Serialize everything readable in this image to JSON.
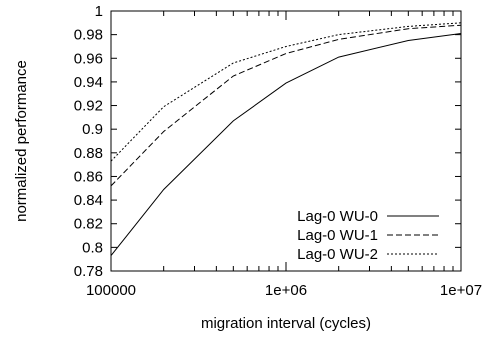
{
  "chart_data": {
    "type": "line",
    "xlabel": "migration interval (cycles)",
    "ylabel": "normalized performance",
    "xscale": "log",
    "xlim": [
      100000,
      10000000
    ],
    "ylim": [
      0.78,
      1.0
    ],
    "x_ticks": [
      {
        "value": 100000,
        "label": "100000"
      },
      {
        "value": 1000000,
        "label": "1e+06"
      },
      {
        "value": 10000000,
        "label": "1e+07"
      }
    ],
    "y_ticks": [
      {
        "value": 0.78,
        "label": "0.78"
      },
      {
        "value": 0.8,
        "label": "0.8"
      },
      {
        "value": 0.82,
        "label": "0.82"
      },
      {
        "value": 0.84,
        "label": "0.84"
      },
      {
        "value": 0.86,
        "label": "0.86"
      },
      {
        "value": 0.88,
        "label": "0.88"
      },
      {
        "value": 0.9,
        "label": "0.9"
      },
      {
        "value": 0.92,
        "label": "0.92"
      },
      {
        "value": 0.94,
        "label": "0.94"
      },
      {
        "value": 0.96,
        "label": "0.96"
      },
      {
        "value": 0.98,
        "label": "0.98"
      },
      {
        "value": 1.0,
        "label": "1"
      }
    ],
    "grid": false,
    "legend_position": "bottom-right",
    "series": [
      {
        "name": "Lag-0 WU-0",
        "line_style": "solid",
        "x": [
          100000,
          200000,
          500000,
          1000000,
          2000000,
          5000000,
          10000000
        ],
        "y": [
          0.793,
          0.849,
          0.907,
          0.939,
          0.961,
          0.975,
          0.981
        ]
      },
      {
        "name": "Lag-0 WU-1",
        "line_style": "dashed",
        "x": [
          100000,
          200000,
          500000,
          1000000,
          2000000,
          5000000,
          10000000
        ],
        "y": [
          0.852,
          0.898,
          0.945,
          0.964,
          0.976,
          0.985,
          0.988
        ]
      },
      {
        "name": "Lag-0 WU-2",
        "line_style": "dotted",
        "x": [
          100000,
          200000,
          500000,
          1000000,
          2000000,
          5000000,
          10000000
        ],
        "y": [
          0.873,
          0.919,
          0.956,
          0.97,
          0.98,
          0.987,
          0.99
        ]
      }
    ]
  }
}
